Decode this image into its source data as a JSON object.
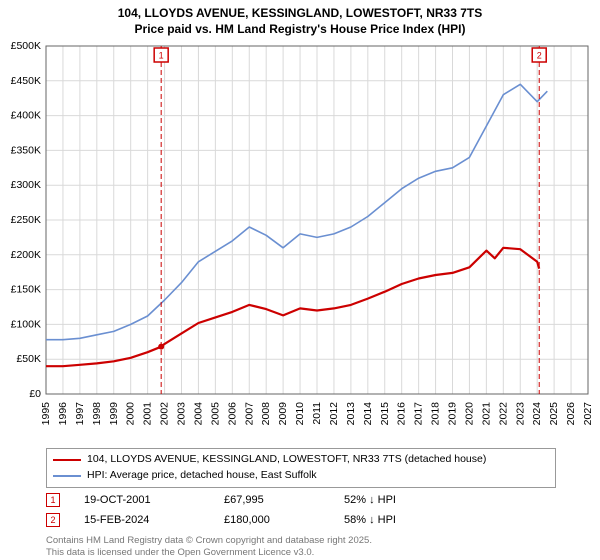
{
  "title_line1": "104, LLOYDS AVENUE, KESSINGLAND, LOWESTOFT, NR33 7TS",
  "title_line2": "Price paid vs. HM Land Registry's House Price Index (HPI)",
  "chart": {
    "type": "line",
    "background_color": "#ffffff",
    "plot_background": "#ffffff",
    "grid_color": "#d9d9d9",
    "axis_color": "#666666",
    "tick_fontsize": 10.5,
    "xlim": [
      1995,
      2027
    ],
    "ylim": [
      0,
      500000
    ],
    "ytick_step": 50000,
    "ytick_labels": [
      "£0",
      "£50K",
      "£100K",
      "£150K",
      "£200K",
      "£250K",
      "£300K",
      "£350K",
      "£400K",
      "£450K",
      "£500K"
    ],
    "xticks": [
      1995,
      1996,
      1997,
      1998,
      1999,
      2000,
      2001,
      2002,
      2003,
      2004,
      2005,
      2006,
      2007,
      2008,
      2009,
      2010,
      2011,
      2012,
      2013,
      2014,
      2015,
      2016,
      2017,
      2018,
      2019,
      2020,
      2021,
      2022,
      2023,
      2024,
      2025,
      2026,
      2027
    ],
    "series": [
      {
        "id": "hpi",
        "label": "HPI: Average price, detached house, East Suffolk",
        "color": "#6a8fd1",
        "line_width": 1.6,
        "data": [
          [
            1995,
            78000
          ],
          [
            1996,
            78000
          ],
          [
            1997,
            80000
          ],
          [
            1998,
            85000
          ],
          [
            1999,
            90000
          ],
          [
            2000,
            100000
          ],
          [
            2001,
            112000
          ],
          [
            2002,
            135000
          ],
          [
            2003,
            160000
          ],
          [
            2004,
            190000
          ],
          [
            2005,
            205000
          ],
          [
            2006,
            220000
          ],
          [
            2007,
            240000
          ],
          [
            2008,
            228000
          ],
          [
            2009,
            210000
          ],
          [
            2010,
            230000
          ],
          [
            2011,
            225000
          ],
          [
            2012,
            230000
          ],
          [
            2013,
            240000
          ],
          [
            2014,
            255000
          ],
          [
            2015,
            275000
          ],
          [
            2016,
            295000
          ],
          [
            2017,
            310000
          ],
          [
            2018,
            320000
          ],
          [
            2019,
            325000
          ],
          [
            2020,
            340000
          ],
          [
            2021,
            385000
          ],
          [
            2022,
            430000
          ],
          [
            2023,
            445000
          ],
          [
            2024,
            420000
          ],
          [
            2024.6,
            435000
          ]
        ]
      },
      {
        "id": "price_paid",
        "label": "104, LLOYDS AVENUE, KESSINGLAND, LOWESTOFT, NR33 7TS (detached house)",
        "color": "#cc0000",
        "line_width": 2.2,
        "data": [
          [
            1995,
            40000
          ],
          [
            1996,
            40000
          ],
          [
            1997,
            42000
          ],
          [
            1998,
            44000
          ],
          [
            1999,
            47000
          ],
          [
            2000,
            52000
          ],
          [
            2001,
            60000
          ],
          [
            2001.8,
            67995
          ],
          [
            2002,
            72000
          ],
          [
            2003,
            87000
          ],
          [
            2004,
            102000
          ],
          [
            2005,
            110000
          ],
          [
            2006,
            118000
          ],
          [
            2007,
            128000
          ],
          [
            2008,
            122000
          ],
          [
            2009,
            113000
          ],
          [
            2010,
            123000
          ],
          [
            2011,
            120000
          ],
          [
            2012,
            123000
          ],
          [
            2013,
            128000
          ],
          [
            2014,
            137000
          ],
          [
            2015,
            147000
          ],
          [
            2016,
            158000
          ],
          [
            2017,
            166000
          ],
          [
            2018,
            171000
          ],
          [
            2019,
            174000
          ],
          [
            2020,
            182000
          ],
          [
            2021,
            206000
          ],
          [
            2021.5,
            195000
          ],
          [
            2022,
            210000
          ],
          [
            2023,
            208000
          ],
          [
            2024,
            190000
          ],
          [
            2024.12,
            180000
          ]
        ]
      }
    ],
    "markers": [
      {
        "n": "1",
        "x": 2001.8,
        "color": "#cc0000"
      },
      {
        "n": "2",
        "x": 2024.12,
        "color": "#cc0000"
      }
    ]
  },
  "legend": {
    "items": [
      {
        "color": "#cc0000",
        "label": "104, LLOYDS AVENUE, KESSINGLAND, LOWESTOFT, NR33 7TS (detached house)"
      },
      {
        "color": "#6a8fd1",
        "label": "HPI: Average price, detached house, East Suffolk"
      }
    ]
  },
  "marker_rows": [
    {
      "n": "1",
      "color": "#cc0000",
      "date": "19-OCT-2001",
      "price": "£67,995",
      "hpi": "52% ↓ HPI"
    },
    {
      "n": "2",
      "color": "#cc0000",
      "date": "15-FEB-2024",
      "price": "£180,000",
      "hpi": "58% ↓ HPI"
    }
  ],
  "attribution_line1": "Contains HM Land Registry data © Crown copyright and database right 2025.",
  "attribution_line2": "This data is licensed under the Open Government Licence v3.0."
}
